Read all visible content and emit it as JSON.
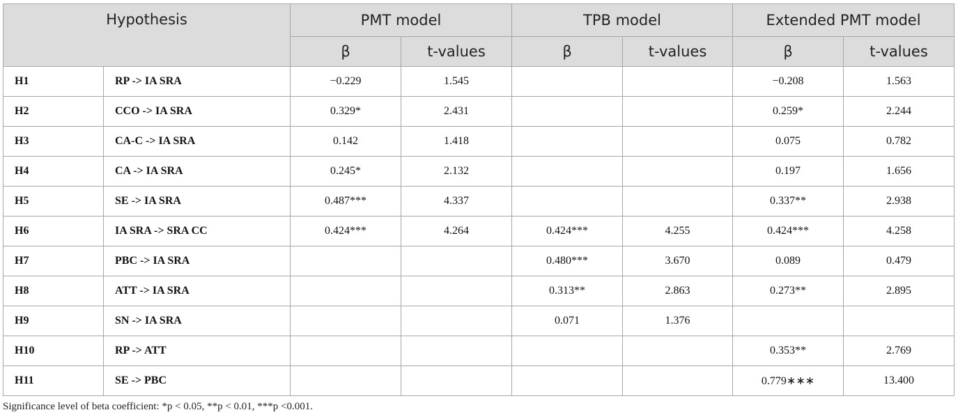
{
  "table": {
    "header": {
      "hypothesis": "Hypothesis",
      "groups": [
        "PMT model",
        "TPB model",
        "Extended PMT model"
      ],
      "sub": [
        "β",
        "t-values",
        "β",
        "t-values",
        "β",
        "t-values"
      ]
    },
    "rows": [
      [
        "H1",
        "RP -> IA SRA",
        "−0.229",
        "1.545",
        null,
        null,
        "−0.208",
        "1.563"
      ],
      [
        "H2",
        "CCO -> IA SRA",
        "0.329*",
        "2.431",
        null,
        null,
        "0.259*",
        "2.244"
      ],
      [
        "H3",
        "CA-C -> IA SRA",
        "0.142",
        "1.418",
        null,
        null,
        "0.075",
        "0.782"
      ],
      [
        "H4",
        "CA -> IA SRA",
        "0.245*",
        "2.132",
        null,
        null,
        "0.197",
        "1.656"
      ],
      [
        "H5",
        "SE -> IA SRA",
        "0.487***",
        "4.337",
        null,
        null,
        "0.337**",
        "2.938"
      ],
      [
        "H6",
        "IA SRA -> SRA CC",
        "0.424***",
        "4.264",
        "0.424***",
        "4.255",
        "0.424***",
        "4.258"
      ],
      [
        "H7",
        "PBC -> IA SRA",
        null,
        null,
        "0.480***",
        "3.670",
        "0.089",
        "0.479"
      ],
      [
        "H8",
        "ATT -> IA SRA",
        null,
        null,
        "0.313**",
        "2.863",
        "0.273**",
        "2.895"
      ],
      [
        "H9",
        "SN -> IA SRA",
        null,
        null,
        "0.071",
        "1.376",
        null,
        null
      ],
      [
        "H10",
        "RP -> ATT",
        null,
        null,
        null,
        null,
        "0.353**",
        "2.769"
      ],
      [
        "H11",
        "SE -> PBC",
        null,
        null,
        null,
        null,
        "0.779∗∗∗",
        "13.400"
      ]
    ],
    "note": "Significance level of beta coefficient: *p < 0.05, **p < 0.01, ***p <0.001."
  }
}
